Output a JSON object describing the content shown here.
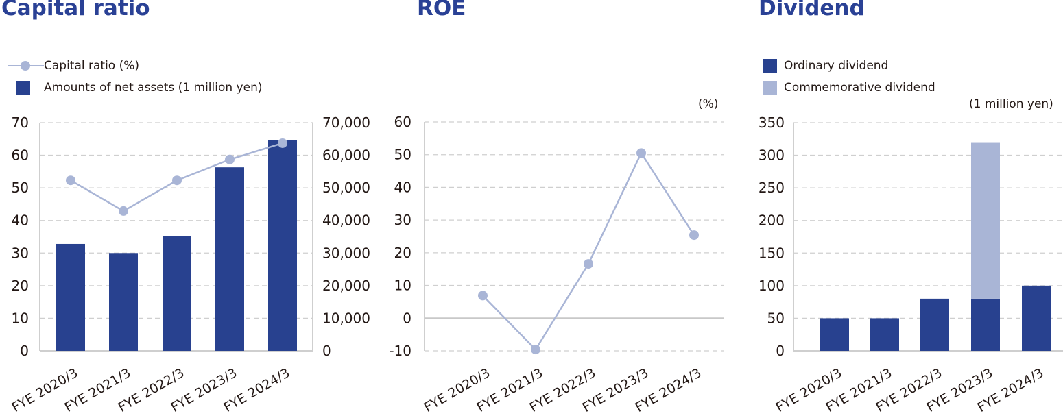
{
  "colors": {
    "title": "#2a4195",
    "bar_dark": "#28418f",
    "bar_light": "#a9b5d6",
    "line": "#a9b5d6",
    "grid": "#cfcfcf",
    "axis": "#cfcfcf",
    "text": "#231815"
  },
  "panels": {
    "capital": {
      "title": "Capital ratio",
      "legend": [
        {
          "label": "Capital ratio (%)",
          "type": "line"
        },
        {
          "label": "Amounts of net assets (1 million yen)",
          "type": "bar"
        }
      ]
    },
    "roe": {
      "title": "ROE",
      "unit": "(%)"
    },
    "dividend": {
      "title": "Dividend",
      "legend": [
        {
          "label": "Ordinary dividend",
          "type": "bar"
        },
        {
          "label": "Commemorative dividend",
          "type": "bar-light"
        }
      ],
      "unit": "(1 million yen)"
    }
  },
  "chart_data": [
    {
      "type": "bar+line",
      "title": "Capital ratio",
      "categories": [
        "FYE 2020/3",
        "FYE 2021/3",
        "FYE 2022/3",
        "FYE 2023/3",
        "FYE 2024/3"
      ],
      "series": [
        {
          "name": "Amounts of net assets (1 million yen)",
          "type": "bar",
          "axis": "right",
          "values": [
            32800,
            30000,
            35300,
            56300,
            64700
          ]
        },
        {
          "name": "Capital ratio (%)",
          "type": "line",
          "axis": "left",
          "values": [
            52.3,
            42.9,
            52.3,
            58.7,
            63.7
          ]
        }
      ],
      "left_axis": {
        "ylim": [
          0,
          70
        ],
        "ticks": [
          "0",
          "10",
          "20",
          "30",
          "40",
          "50",
          "60",
          "70"
        ]
      },
      "right_axis": {
        "ylim": [
          0,
          70000
        ],
        "ticks": [
          "0",
          "10,000",
          "20,000",
          "30,000",
          "40,000",
          "50,000",
          "60,000",
          "70,000"
        ]
      },
      "xlabel": "",
      "grid": true,
      "legend_position": "top-left"
    },
    {
      "type": "line",
      "title": "ROE",
      "categories": [
        "FYE 2020/3",
        "FYE 2021/3",
        "FYE 2022/3",
        "FYE 2023/3",
        "FYE 2024/3"
      ],
      "series": [
        {
          "name": "ROE (%)",
          "values": [
            6.9,
            -9.6,
            16.6,
            50.5,
            25.4
          ]
        }
      ],
      "ylabel": "(%)",
      "ylim": [
        -10,
        60
      ],
      "ticks": [
        "-10",
        "0",
        "10",
        "20",
        "30",
        "40",
        "50",
        "60"
      ],
      "grid": true
    },
    {
      "type": "stacked-bar",
      "title": "Dividend",
      "categories": [
        "FYE 2020/3",
        "FYE 2021/3",
        "FYE 2022/3",
        "FYE 2023/3",
        "FYE 2024/3"
      ],
      "series": [
        {
          "name": "Ordinary dividend",
          "values": [
            50,
            50,
            80,
            80,
            100
          ]
        },
        {
          "name": "Commemorative dividend",
          "values": [
            0,
            0,
            0,
            240,
            0
          ]
        }
      ],
      "ylabel": "(1 million yen)",
      "ylim": [
        0,
        350
      ],
      "ticks": [
        "0",
        "50",
        "100",
        "150",
        "200",
        "250",
        "300",
        "350"
      ],
      "grid": true,
      "legend_position": "top-left"
    }
  ]
}
